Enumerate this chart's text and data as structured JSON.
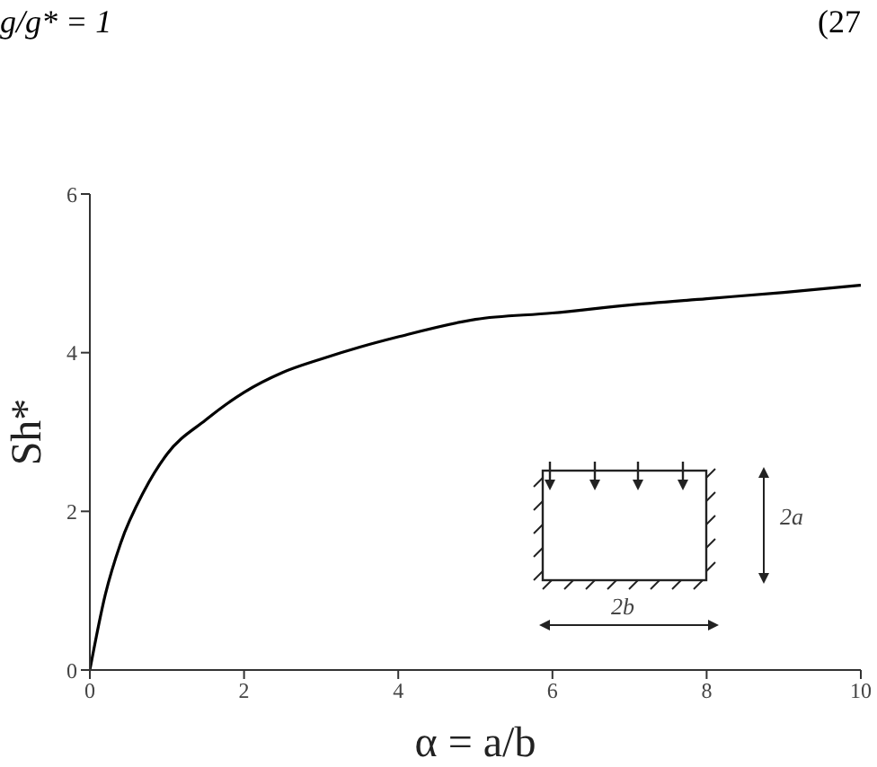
{
  "chart_data": {
    "type": "line",
    "xlabel": "α = a/b",
    "ylabel": "Sh*",
    "x": [
      0,
      0.2,
      0.4,
      0.7,
      1,
      1.5,
      2,
      2.5,
      3,
      3.5,
      4,
      5,
      6,
      7,
      8,
      9,
      10
    ],
    "series": [
      {
        "color": "#000000",
        "values": [
          0,
          0.95,
          1.6,
          2.25,
          2.72,
          3.15,
          3.5,
          3.75,
          3.92,
          4.07,
          4.2,
          4.42,
          4.5,
          4.6,
          4.68,
          4.76,
          4.85
        ]
      }
    ],
    "xlim": [
      0,
      10
    ],
    "xticks": [
      0,
      2,
      4,
      6,
      8,
      10
    ],
    "ylim": [
      0,
      6
    ],
    "yticks": [
      0,
      2,
      4,
      6
    ],
    "marker": "none",
    "line_style": "solid",
    "annotations": [
      "g/g* = 1",
      "(27",
      "2a",
      "2b"
    ]
  }
}
